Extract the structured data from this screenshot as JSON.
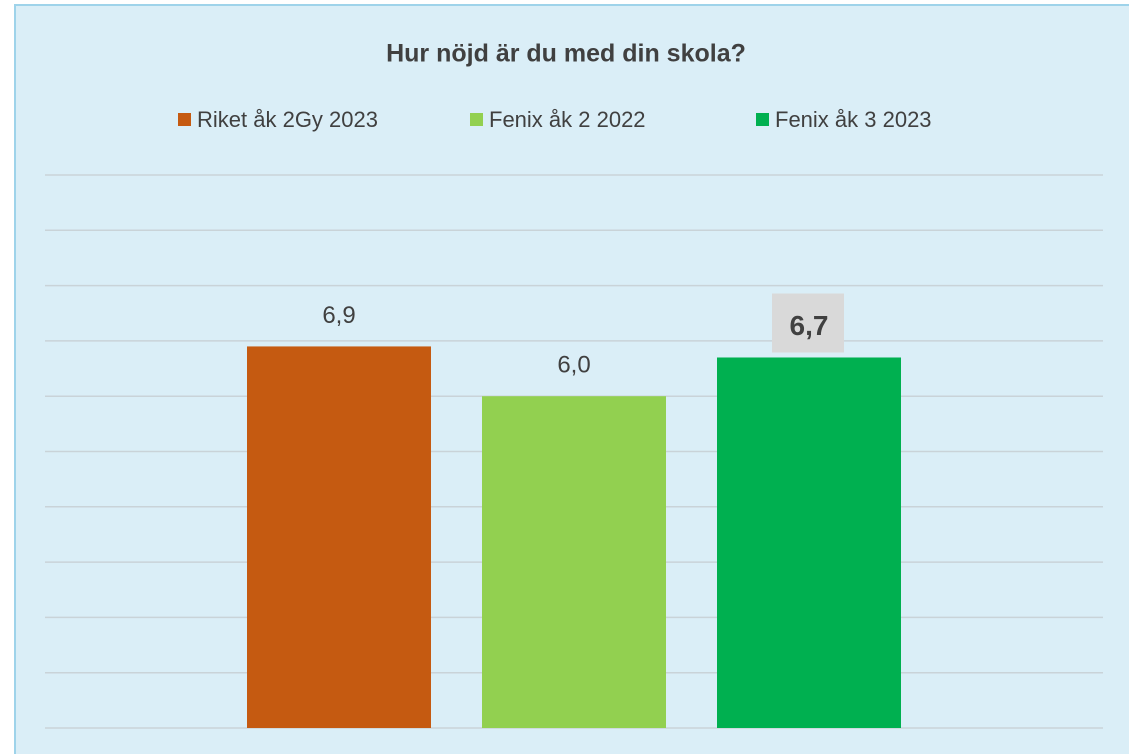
{
  "chart_data": {
    "type": "bar",
    "title": "Hur nöjd är du med din skola?",
    "categories": [
      null
    ],
    "series": [
      {
        "name": "Riket åk 2Gy 2023",
        "color": "#c55a11",
        "values": [
          6.9
        ],
        "value_labels": [
          "6,9"
        ]
      },
      {
        "name": "Fenix åk 2 2022",
        "color": "#92d050",
        "values": [
          6.0
        ],
        "value_labels": [
          "6,0"
        ]
      },
      {
        "name": "Fenix åk 3 2023",
        "color": "#00b050",
        "values": [
          6.7
        ],
        "value_labels": [
          "6,7"
        ]
      }
    ],
    "ylim": [
      0,
      10
    ],
    "yticks": [
      0,
      1,
      2,
      3,
      4,
      5,
      6,
      7,
      8,
      9,
      10
    ],
    "grid": true,
    "legend": "top"
  }
}
